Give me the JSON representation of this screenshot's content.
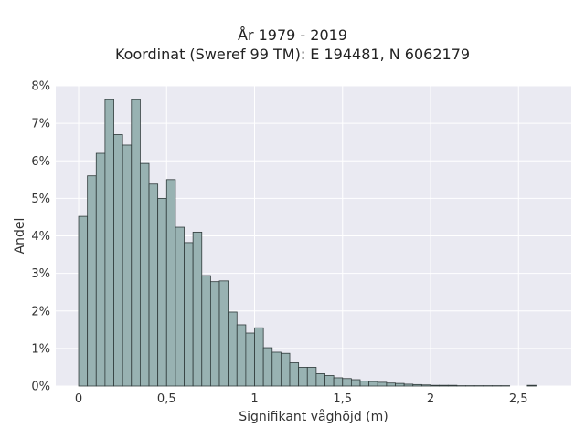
{
  "chart_data": {
    "type": "bar",
    "title": "År 1979 - 2019",
    "subtitle": "Koordinat (Sweref 99 TM): E 194481, N 6062179",
    "xlabel": "Signifikant våghöjd (m)",
    "ylabel": "Andel",
    "xlim": [
      -0.13,
      2.8
    ],
    "ylim": [
      0,
      8
    ],
    "x_ticks": [
      0,
      0.5,
      1,
      1.5,
      2,
      2.5
    ],
    "x_tick_labels": [
      "0",
      "0,5",
      "1",
      "1,5",
      "2",
      "2,5"
    ],
    "y_ticks": [
      0,
      1,
      2,
      3,
      4,
      5,
      6,
      7,
      8
    ],
    "y_tick_labels": [
      "0%",
      "1%",
      "2%",
      "3%",
      "4%",
      "5%",
      "6%",
      "7%",
      "8%"
    ],
    "bin_width": 0.05,
    "bin_starts": [
      0.0,
      0.05,
      0.1,
      0.15,
      0.2,
      0.25,
      0.3,
      0.35,
      0.4,
      0.45,
      0.5,
      0.55,
      0.6,
      0.65,
      0.7,
      0.75,
      0.8,
      0.85,
      0.9,
      0.95,
      1.0,
      1.05,
      1.1,
      1.15,
      1.2,
      1.25,
      1.3,
      1.35,
      1.4,
      1.45,
      1.5,
      1.55,
      1.6,
      1.65,
      1.7,
      1.75,
      1.8,
      1.85,
      1.9,
      1.95,
      2.0,
      2.05,
      2.1,
      2.15,
      2.2,
      2.25,
      2.3,
      2.35,
      2.4,
      2.45,
      2.5,
      2.55
    ],
    "values": [
      4.52,
      5.6,
      6.2,
      7.63,
      6.7,
      6.42,
      7.63,
      5.93,
      5.38,
      5.0,
      5.5,
      4.23,
      3.82,
      4.1,
      2.94,
      2.78,
      2.8,
      1.97,
      1.63,
      1.41,
      1.55,
      1.02,
      0.9,
      0.87,
      0.62,
      0.5,
      0.5,
      0.33,
      0.28,
      0.22,
      0.2,
      0.17,
      0.13,
      0.12,
      0.1,
      0.08,
      0.07,
      0.05,
      0.04,
      0.03,
      0.02,
      0.02,
      0.02,
      0.01,
      0.01,
      0.01,
      0.01,
      0.01,
      0.01,
      0.0,
      0.0,
      0.02
    ],
    "grid": true,
    "colors": {
      "bar_fill": "#98b2b2",
      "bar_edge": "#2f3a3a",
      "plot_bg": "#eaeaf2",
      "grid": "#ffffff"
    }
  }
}
